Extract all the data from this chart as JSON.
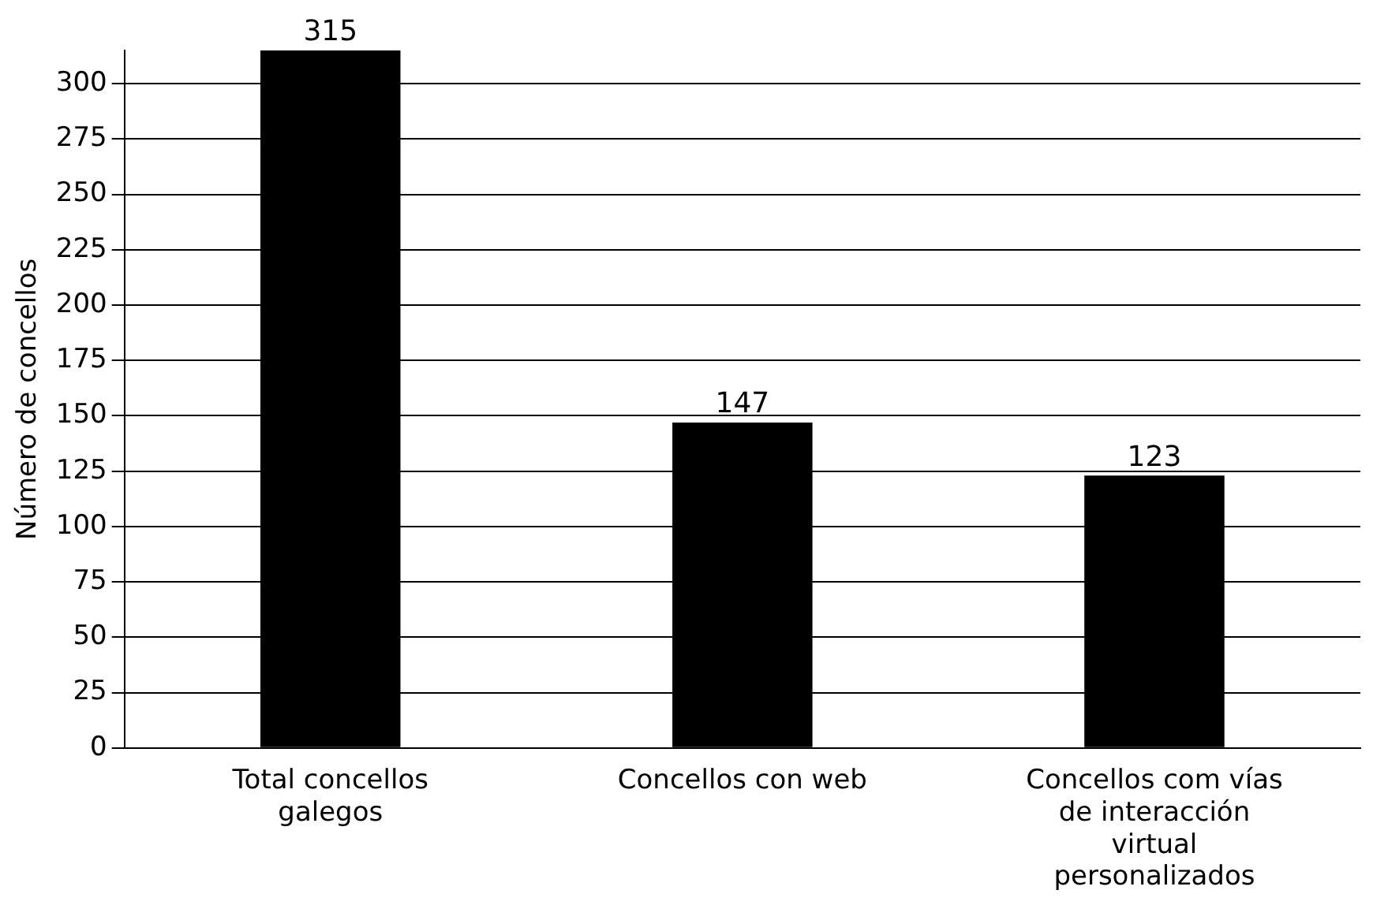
{
  "chart_data": {
    "type": "bar",
    "ylabel": "Número de concellos",
    "categories": [
      "Total concellos galegos",
      "Concellos con web",
      "Concellos com vías de interacción virtual personalizados"
    ],
    "values": [
      315,
      147,
      123
    ],
    "color": "#000000",
    "ylim": [
      0,
      315
    ],
    "yticks": [
      0,
      25,
      50,
      75,
      100,
      125,
      150,
      175,
      200,
      225,
      250,
      275,
      300
    ],
    "grid": "y",
    "data_labels": true
  }
}
